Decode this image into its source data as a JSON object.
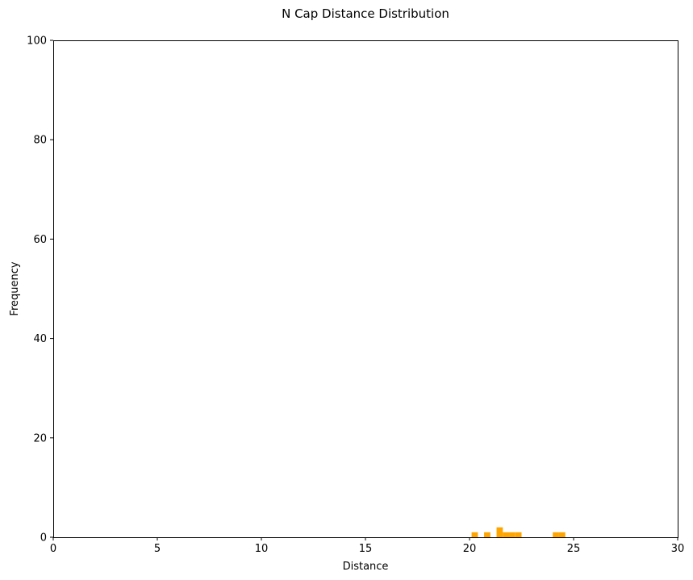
{
  "chart_data": {
    "type": "bar",
    "title": "N Cap Distance Distribution",
    "xlabel": "Distance",
    "ylabel": "Frequency",
    "xlim": [
      0,
      30
    ],
    "ylim": [
      0,
      100
    ],
    "xticks": [
      0,
      5,
      10,
      15,
      20,
      25,
      30
    ],
    "yticks": [
      0,
      20,
      40,
      60,
      80,
      100
    ],
    "bin_width": 0.3,
    "bar_color": "#ffa500",
    "grid": false,
    "bins": [
      {
        "start": 20.1,
        "count": 1
      },
      {
        "start": 20.7,
        "count": 1
      },
      {
        "start": 21.3,
        "count": 2
      },
      {
        "start": 21.6,
        "count": 1
      },
      {
        "start": 21.9,
        "count": 1
      },
      {
        "start": 22.2,
        "count": 1
      },
      {
        "start": 24.0,
        "count": 1
      },
      {
        "start": 24.3,
        "count": 1
      }
    ]
  }
}
